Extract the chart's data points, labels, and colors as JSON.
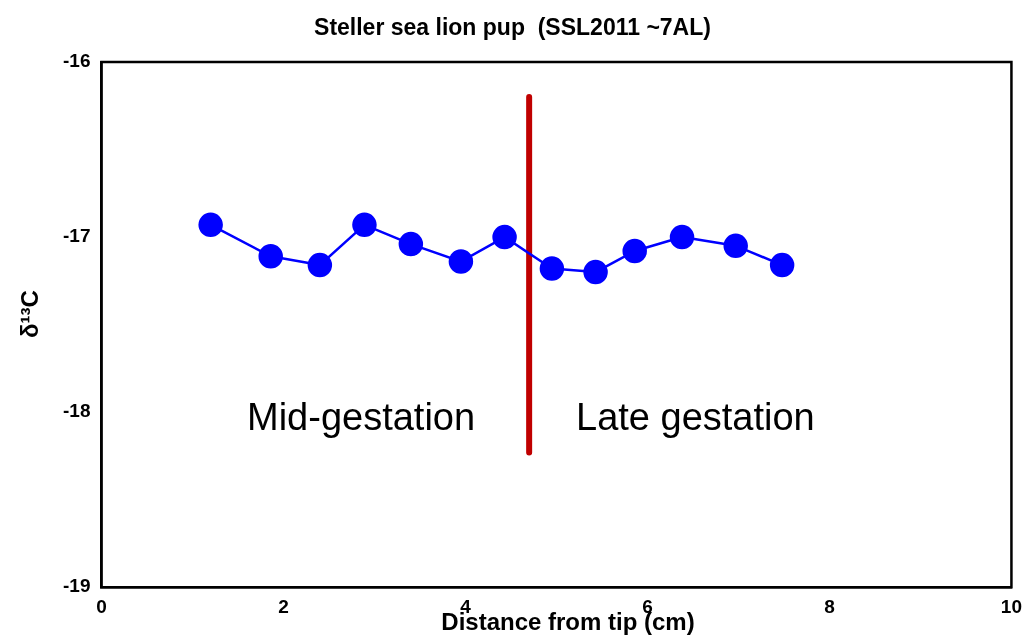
{
  "chart_data": {
    "type": "line",
    "title": "Steller sea lion pup  (SSL2011 ~7AL)",
    "xlabel": "Distance from tip (cm)",
    "ylabel": "δ¹³C",
    "series": [
      {
        "color": "#0000ff",
        "marker": "circle",
        "x": [
          1.2,
          1.86,
          2.4,
          2.89,
          3.4,
          3.95,
          4.43,
          4.95,
          5.43,
          5.86,
          6.38,
          6.97,
          7.48
        ],
        "values": [
          -16.93,
          -17.11,
          -17.16,
          -16.93,
          -17.04,
          -17.14,
          -17.0,
          -17.18,
          -17.2,
          -17.08,
          -17.0,
          -17.05,
          -17.16
        ]
      },
      {
        "color": "#c00000",
        "marker": "none",
        "x": [
          4.7,
          4.7
        ],
        "values": [
          -16.2,
          -18.23
        ]
      }
    ],
    "annotations": [
      "Mid-gestation",
      "Late gestation"
    ],
    "xlim": [
      0,
      10
    ],
    "xticks": [
      0,
      2,
      4,
      6,
      8,
      10
    ],
    "ylim": [
      -19,
      -16
    ],
    "yticks": [
      -19,
      -18,
      -17,
      -16
    ],
    "grid": false,
    "legend": false
  }
}
